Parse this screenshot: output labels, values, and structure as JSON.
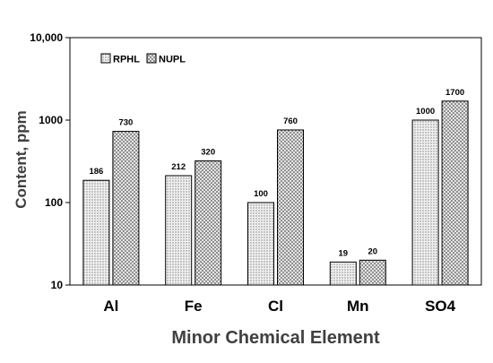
{
  "chart_data": {
    "type": "bar",
    "scale": "log",
    "categories": [
      "Al",
      "Fe",
      "Cl",
      "Mn",
      "SO4"
    ],
    "series": [
      {
        "name": "RPHL",
        "values": [
          186,
          212,
          100,
          19,
          1000
        ],
        "labels": [
          "186",
          "212",
          "100",
          "19",
          "1000"
        ],
        "pattern": "dots"
      },
      {
        "name": "NUPL",
        "values": [
          730,
          320,
          760,
          20,
          1700
        ],
        "labels": [
          "730",
          "320",
          "760",
          "20",
          "1700"
        ],
        "pattern": "crosshatch"
      }
    ],
    "xlabel": "Minor Chemical Element",
    "ylabel": "Content, ppm",
    "ylim": [
      10,
      10000
    ],
    "yticks": [
      10,
      100,
      1000,
      10000
    ],
    "ytick_labels": [
      "10",
      "100",
      "1000",
      "10,000"
    ],
    "grid": false,
    "legend_position": "top-left"
  }
}
